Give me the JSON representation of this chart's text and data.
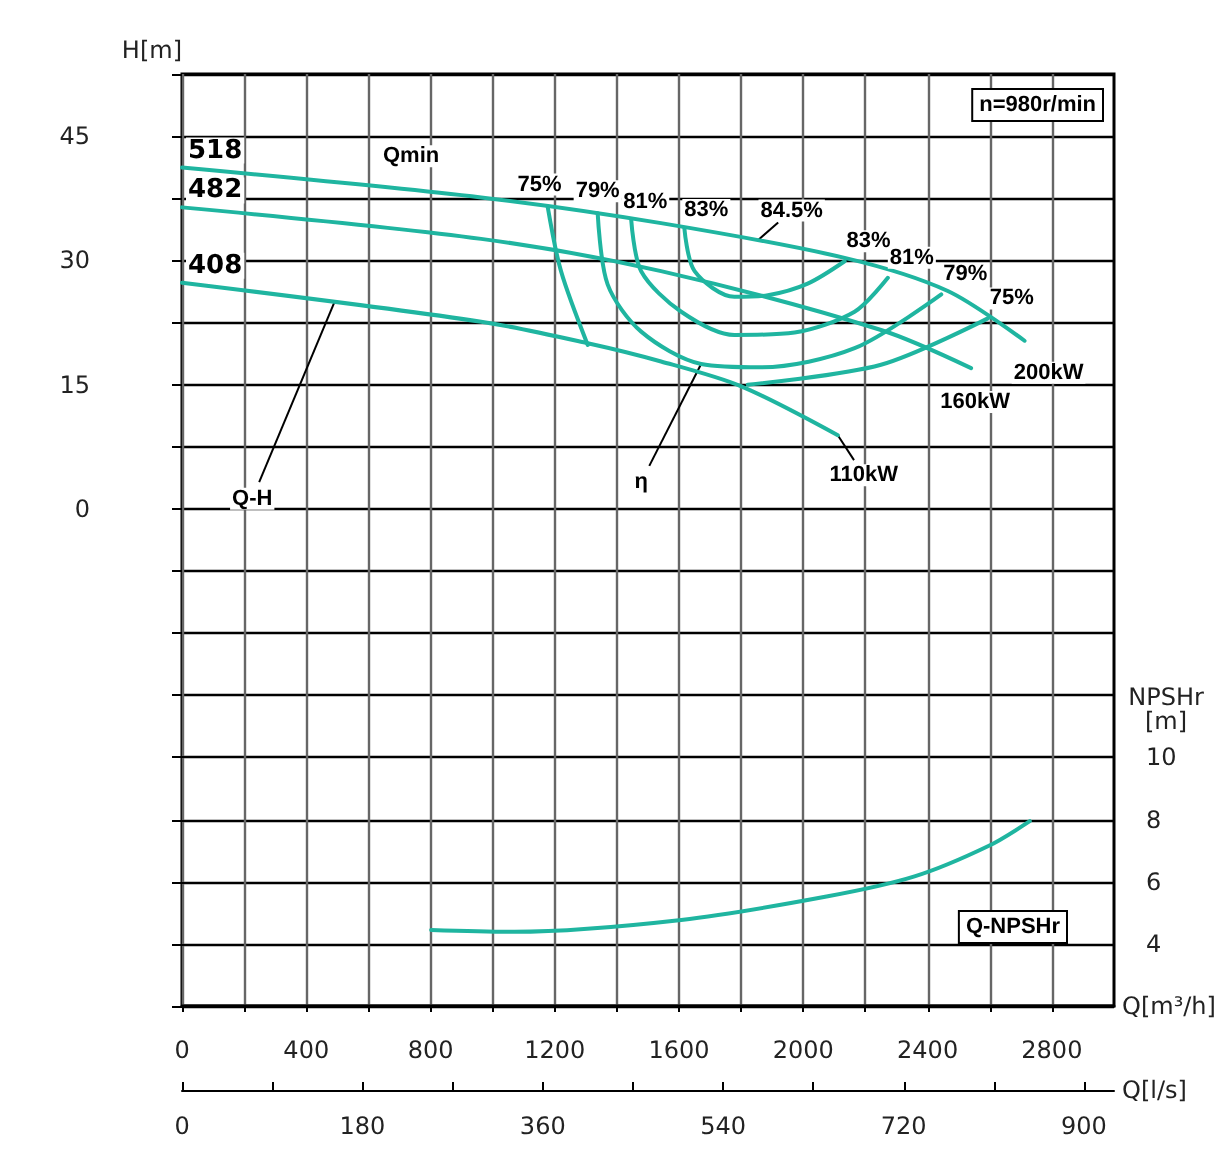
{
  "chart_data": {
    "type": "line",
    "xlabel": "Q[m³/h]",
    "x2label": "Q[l/s]",
    "ylabel": "H[m]",
    "y2label": "NPSHr[m]",
    "xlim": [
      0,
      3000
    ],
    "xticks": [
      0,
      {
        "value": 200,
        "label": null
      },
      400,
      {
        "value": 600,
        "label": null
      },
      800,
      {
        "value": 1000,
        "label": null
      },
      1200,
      {
        "value": 1400,
        "label": null
      },
      1600,
      {
        "value": 1800,
        "label": null
      },
      2000,
      {
        "value": 2200,
        "label": null
      },
      2400,
      {
        "value": 2600,
        "label": null
      },
      2800
    ],
    "x2lim": [
      0,
      930
    ],
    "x2ticks": [
      0,
      {
        "value": 90,
        "label": null
      },
      180,
      {
        "value": 270,
        "label": null
      },
      360,
      {
        "value": 450,
        "label": null
      },
      540,
      {
        "value": 630,
        "label": null
      },
      720,
      {
        "value": 810,
        "label": null
      },
      900
    ],
    "ylim": [
      -60,
      52.5
    ],
    "yticks": [
      {
        "value": -60,
        "label": null
      },
      {
        "value": -52.5,
        "label": null
      },
      {
        "value": -45,
        "label": null
      },
      {
        "value": -37.5,
        "label": null
      },
      {
        "value": -30,
        "label": null
      },
      {
        "value": -22.5,
        "label": null
      },
      {
        "value": -15,
        "label": null
      },
      {
        "value": -7.5,
        "label": null
      },
      0,
      {
        "value": 7.5,
        "label": null
      },
      15,
      {
        "value": 22.5,
        "label": null
      },
      30,
      {
        "value": 37.5,
        "label": null
      },
      45,
      {
        "value": 52.5,
        "label": null
      }
    ],
    "y2lim": [
      2,
      32
    ],
    "y2ticks": [
      4,
      6,
      8,
      10
    ],
    "grid": true,
    "marker": "none",
    "line_style": "solid",
    "series": [
      {
        "name": "518",
        "color": "#1fb5a0",
        "x": [
          0,
          963,
          1542,
          2133,
          2465,
          2712
        ],
        "values": [
          41.2,
          37.6,
          34.5,
          30.3,
          26.3,
          20.3
        ]
      },
      {
        "name": "482",
        "color": "#1fb5a0",
        "x": [
          0,
          963,
          1542,
          2250,
          2540
        ],
        "values": [
          36.4,
          32.6,
          28.7,
          21.6,
          17.0
        ]
      },
      {
        "name": "408",
        "color": "#1fb5a0",
        "x": [
          0,
          963,
          1306,
          1542,
          1800,
          2111
        ],
        "values": [
          27.3,
          22.6,
          20.0,
          17.8,
          14.8,
          8.9
        ]
      },
      {
        "color": "#1fb5a0",
        "x": [
          1177,
          1220,
          1306
        ],
        "values": [
          36.5,
          28.7,
          19.8
        ]
      },
      {
        "color": "#1fb5a0",
        "x": [
          1821,
          2250,
          2594
        ],
        "values": [
          15.0,
          17.4,
          23.0
        ]
      },
      {
        "color": "#1fb5a0",
        "x": [
          1338,
          1370,
          1478,
          1671,
          1864,
          2165,
          2444
        ],
        "values": [
          35.7,
          27.1,
          21.4,
          17.5,
          17.1,
          19.4,
          25.9
        ]
      },
      {
        "color": "#1fb5a0",
        "x": [
          1446,
          1478,
          1607,
          1778,
          1972,
          2165,
          2272
        ],
        "values": [
          34.9,
          28.7,
          23.8,
          21.0,
          21.3,
          23.8,
          27.9
        ]
      },
      {
        "color": "#1fb5a0",
        "x": [
          1617,
          1650,
          1778,
          1886,
          2014,
          2133
        ],
        "values": [
          33.9,
          28.7,
          25.6,
          25.8,
          27.2,
          29.9
        ]
      },
      {
        "color": "#1fb5a0",
        "axis": "y2",
        "x": [
          802,
          1070,
          1607,
          2079,
          2358,
          2594,
          2729
        ],
        "values": [
          4.45,
          4.39,
          4.77,
          5.53,
          6.17,
          7.14,
          7.95
        ]
      }
    ],
    "annotations": [
      "n=980r/min",
      {
        "text": "Qmin",
        "x": 673,
        "y": 38.7
      },
      {
        "text": "75%",
        "x": 1177,
        "y": 36.5
      },
      {
        "text": "79%",
        "x": 1338,
        "y": 35.7
      },
      {
        "text": "81%",
        "x": 1446,
        "y": 34.9
      },
      {
        "text": "83%",
        "x": 1617,
        "y": 33.9
      },
      {
        "text": "84.5%",
        "x": 1853,
        "y": 32.4
      },
      {
        "text": "83%",
        "x": 2133,
        "y": 29.9
      },
      {
        "text": "81%",
        "x": 2272,
        "y": 27.9
      },
      {
        "text": "79%",
        "x": 2444,
        "y": 25.9
      },
      {
        "text": "75%",
        "x": 2594,
        "y": 23.0
      },
      {
        "text": "200kW",
        "x": 2712,
        "y": 20.3
      },
      {
        "text": "160kW",
        "x": 2540,
        "y": 17.0
      },
      {
        "text": "110kW",
        "x": 2111,
        "y": 8.9
      },
      {
        "text": "η",
        "x": 1671,
        "y": 17.5
      },
      {
        "text": "Q-H",
        "x": 490,
        "y": 24.9
      },
      "Q-NPSHr"
    ]
  }
}
